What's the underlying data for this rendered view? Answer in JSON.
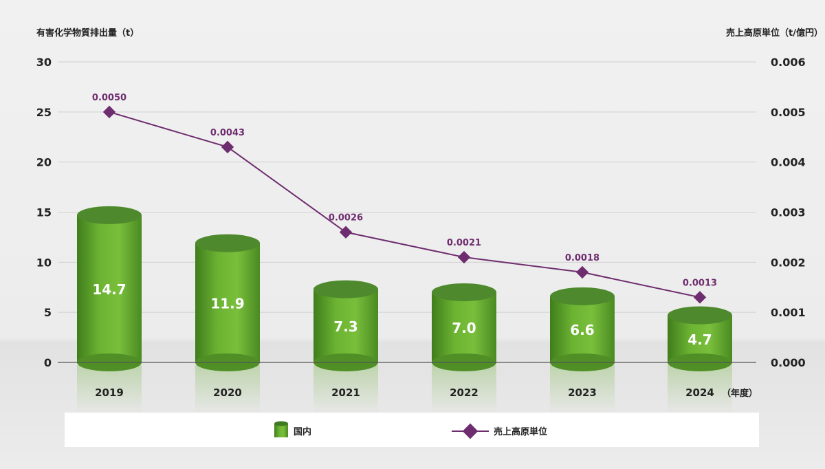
{
  "chart_data": {
    "type": "bar",
    "left_axis_label": "有害化学物質排出量（t）",
    "right_axis_label": "売上高原単位（t/億円）",
    "x_unit_label": "（年度）",
    "categories": [
      "2019",
      "2020",
      "2021",
      "2022",
      "2023",
      "2024"
    ],
    "left_ylim": [
      0,
      30
    ],
    "left_ticks": [
      "0",
      "5",
      "10",
      "15",
      "20",
      "25",
      "30"
    ],
    "right_ylim": [
      0,
      0.006
    ],
    "right_ticks": [
      "0.000",
      "0.001",
      "0.002",
      "0.003",
      "0.004",
      "0.005",
      "0.006"
    ],
    "grid": true,
    "legend_position": "bottom",
    "series": [
      {
        "name": "国内",
        "type": "bar",
        "axis": "left",
        "color": "#5aa02c",
        "values": [
          14.7,
          11.9,
          7.3,
          7.0,
          6.6,
          4.7
        ],
        "labels": [
          "14.7",
          "11.9",
          "7.3",
          "7.0",
          "6.6",
          "4.7"
        ]
      },
      {
        "name": "売上高原単位",
        "type": "line",
        "axis": "right",
        "color": "#6e2d6e",
        "values": [
          0.005,
          0.0043,
          0.0026,
          0.0021,
          0.0018,
          0.0013
        ],
        "labels": [
          "0.0050",
          "0.0043",
          "0.0026",
          "0.0021",
          "0.0018",
          "0.0013"
        ]
      }
    ]
  }
}
